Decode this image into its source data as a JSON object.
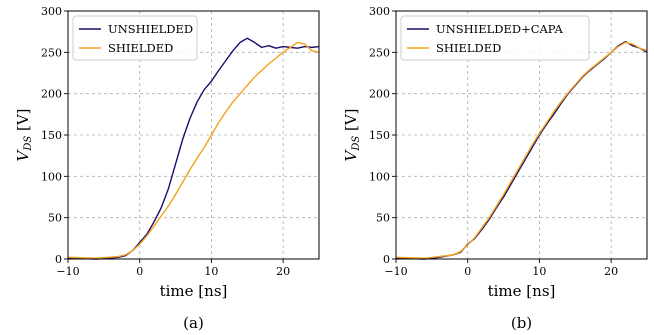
{
  "colors": {
    "unshielded": "#1f0d6b",
    "shielded": "#f2a31c",
    "grid": "#b0b0b0"
  },
  "chart_data": [
    {
      "type": "line",
      "caption": "(a)",
      "xlabel": "time [ns]",
      "ylabel_main": "V",
      "ylabel_sub": "DS",
      "ylabel_unit": " [V]",
      "xlim": [
        -10,
        25
      ],
      "ylim": [
        0,
        300
      ],
      "xticks": [
        -10,
        0,
        10,
        20
      ],
      "xtick_labels": [
        "−10",
        "0",
        "10",
        "20"
      ],
      "yticks": [
        0,
        50,
        100,
        150,
        200,
        250,
        300
      ],
      "ytick_labels": [
        "0",
        "50",
        "100",
        "150",
        "200",
        "250",
        "300"
      ],
      "grid": true,
      "legend_position": "top-left",
      "series": [
        {
          "name": "UNSHIELDED",
          "color": "#1f0d6b",
          "points": [
            [
              -10,
              1
            ],
            [
              -6,
              0
            ],
            [
              -3,
              2
            ],
            [
              -2,
              4
            ],
            [
              -1,
              10
            ],
            [
              0,
              20
            ],
            [
              1,
              30
            ],
            [
              2,
              45
            ],
            [
              3,
              62
            ],
            [
              4,
              85
            ],
            [
              5,
              115
            ],
            [
              6,
              145
            ],
            [
              7,
              170
            ],
            [
              8,
              190
            ],
            [
              9,
              205
            ],
            [
              10,
              215
            ],
            [
              11,
              228
            ],
            [
              12,
              240
            ],
            [
              13,
              252
            ],
            [
              14,
              262
            ],
            [
              15,
              267
            ],
            [
              16,
              262
            ],
            [
              17,
              256
            ],
            [
              18,
              258
            ],
            [
              19,
              255
            ],
            [
              20,
              257
            ],
            [
              21,
              256
            ],
            [
              22,
              255
            ],
            [
              23,
              257
            ],
            [
              24,
              256
            ],
            [
              25,
              257
            ]
          ]
        },
        {
          "name": "SHIELDED",
          "color": "#f2a31c",
          "points": [
            [
              -10,
              2
            ],
            [
              -6,
              1
            ],
            [
              -3,
              3
            ],
            [
              -2,
              5
            ],
            [
              -1,
              10
            ],
            [
              0,
              18
            ],
            [
              1,
              28
            ],
            [
              2,
              40
            ],
            [
              3,
              52
            ],
            [
              4,
              64
            ],
            [
              5,
              78
            ],
            [
              6,
              93
            ],
            [
              7,
              108
            ],
            [
              8,
              122
            ],
            [
              9,
              135
            ],
            [
              10,
              150
            ],
            [
              11,
              165
            ],
            [
              12,
              178
            ],
            [
              13,
              190
            ],
            [
              14,
              200
            ],
            [
              15,
              210
            ],
            [
              16,
              220
            ],
            [
              17,
              228
            ],
            [
              18,
              236
            ],
            [
              19,
              243
            ],
            [
              20,
              250
            ],
            [
              21,
              256
            ],
            [
              22,
              262
            ],
            [
              23,
              260
            ],
            [
              24,
              252
            ],
            [
              25,
              250
            ]
          ]
        }
      ]
    },
    {
      "type": "line",
      "caption": "(b)",
      "xlabel": "time [ns]",
      "ylabel_main": "V",
      "ylabel_sub": "DS",
      "ylabel_unit": " [V]",
      "xlim": [
        -10,
        25
      ],
      "ylim": [
        0,
        300
      ],
      "xticks": [
        -10,
        0,
        10,
        20
      ],
      "xtick_labels": [
        "−10",
        "0",
        "10",
        "20"
      ],
      "yticks": [
        0,
        50,
        100,
        150,
        200,
        250,
        300
      ],
      "ytick_labels": [
        "0",
        "50",
        "100",
        "150",
        "200",
        "250",
        "300"
      ],
      "grid": true,
      "legend_position": "top-left",
      "series": [
        {
          "name": "UNSHIELDED+CAPA",
          "color": "#1f0d6b",
          "points": [
            [
              -10,
              1
            ],
            [
              -6,
              0
            ],
            [
              -4,
              2
            ],
            [
              -2,
              5
            ],
            [
              -1,
              8
            ],
            [
              0,
              18
            ],
            [
              1,
              25
            ],
            [
              2,
              36
            ],
            [
              3,
              48
            ],
            [
              4,
              62
            ],
            [
              5,
              75
            ],
            [
              6,
              90
            ],
            [
              7,
              105
            ],
            [
              8,
              120
            ],
            [
              9,
              135
            ],
            [
              10,
              150
            ],
            [
              11,
              163
            ],
            [
              12,
              175
            ],
            [
              13,
              188
            ],
            [
              14,
              200
            ],
            [
              15,
              210
            ],
            [
              16,
              220
            ],
            [
              17,
              228
            ],
            [
              18,
              235
            ],
            [
              19,
              242
            ],
            [
              20,
              250
            ],
            [
              21,
              258
            ],
            [
              22,
              263
            ],
            [
              23,
              258
            ],
            [
              24,
              255
            ],
            [
              25,
              250
            ]
          ]
        },
        {
          "name": "SHIELDED",
          "color": "#f2a31c",
          "points": [
            [
              -10,
              2
            ],
            [
              -6,
              1
            ],
            [
              -4,
              3
            ],
            [
              -2,
              5
            ],
            [
              -1,
              9
            ],
            [
              0,
              17
            ],
            [
              1,
              26
            ],
            [
              2,
              38
            ],
            [
              3,
              50
            ],
            [
              4,
              64
            ],
            [
              5,
              78
            ],
            [
              6,
              93
            ],
            [
              7,
              108
            ],
            [
              8,
              123
            ],
            [
              9,
              138
            ],
            [
              10,
              152
            ],
            [
              11,
              165
            ],
            [
              12,
              178
            ],
            [
              13,
              190
            ],
            [
              14,
              201
            ],
            [
              15,
              211
            ],
            [
              16,
              221
            ],
            [
              17,
              229
            ],
            [
              18,
              236
            ],
            [
              19,
              243
            ],
            [
              20,
              250
            ],
            [
              21,
              257
            ],
            [
              22,
              262
            ],
            [
              23,
              260
            ],
            [
              24,
              255
            ],
            [
              25,
              252
            ]
          ]
        }
      ]
    }
  ]
}
